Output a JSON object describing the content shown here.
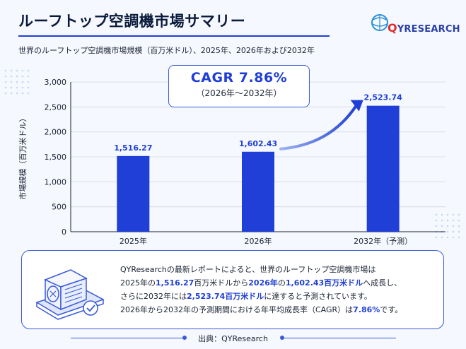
{
  "header": {
    "title": "ルーフトップ空調機市場サマリー",
    "subtitle": "世界のルーフトップ空調機市場規模（百万米ドル）、2025年、2026年および2032年"
  },
  "logo": {
    "q": "Q",
    "text": "YRESEARCH"
  },
  "cagr": {
    "main": "CAGR 7.86%",
    "period": "（2026年～2032年）"
  },
  "chart_data": {
    "type": "bar",
    "categories": [
      "2025年",
      "2026年",
      "2032年（予測）"
    ],
    "values": [
      1516.27,
      1602.43,
      2523.74
    ],
    "value_labels": [
      "1,516.27",
      "1,602.43",
      "2,523.74"
    ],
    "ylabel": "市場規模（百万米ドル）",
    "ylim": [
      0,
      3000
    ],
    "yticks": [
      0,
      500,
      1000,
      1500,
      2000,
      2500,
      3000
    ],
    "ytick_labels": [
      "0",
      "500",
      "1,000",
      "1,500",
      "2,000",
      "2,500",
      "3,000"
    ],
    "grid": true,
    "bar_color": "#1f3fd6"
  },
  "summary": {
    "line1": "QYResearchの最新レポートによると、世界のルーフトップ空調機市場は",
    "line2_a": "2025年の",
    "line2_b": "1,516.27",
    "line2_c": "百万米ドルから",
    "line2_d": "2026年",
    "line2_e": "の",
    "line2_f": "1,602.43百万米ドル",
    "line2_g": "へ成長し、",
    "line3_a": "さらに2032年には",
    "line3_b": "2,523.74百万米ドル",
    "line3_c": "に達すると予測されています。",
    "line4_a": "2026年から2032年の予測期間における年平均成長率（CAGR）は",
    "line4_b": "7.86%",
    "line4_c": "です。"
  },
  "footer": {
    "source": "出典：QYResearch"
  },
  "colors": {
    "accent": "#1f3fd6",
    "border": "#3a5ad8"
  }
}
